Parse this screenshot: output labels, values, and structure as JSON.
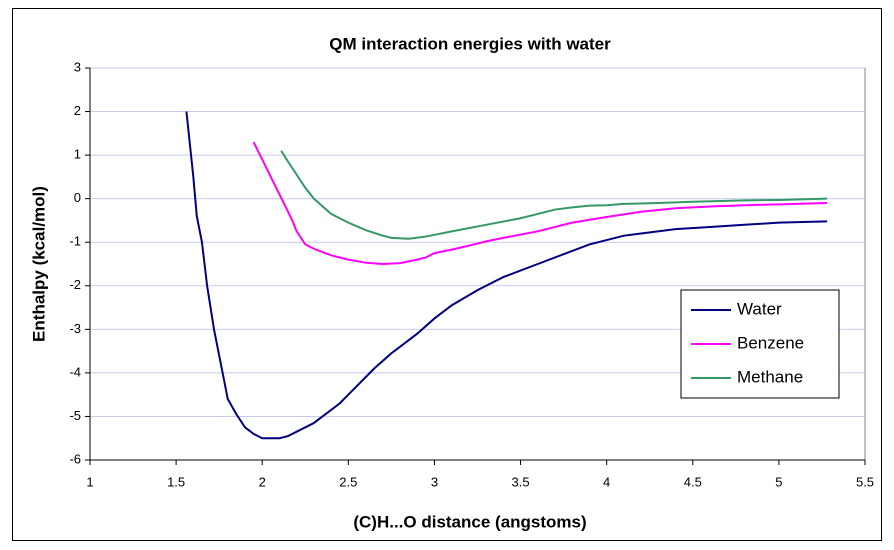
{
  "chart_data": {
    "type": "line",
    "title": "QM interaction energies with water",
    "xlabel": "(C)H...O distance (angstoms)",
    "ylabel": "Enthalpy (kcal/mol)",
    "xlim": [
      1,
      5.5
    ],
    "xticks": [
      1,
      1.5,
      2,
      2.5,
      3,
      3.5,
      4,
      4.5,
      5,
      5.5
    ],
    "ylim": [
      -6,
      3
    ],
    "yticks": [
      -6,
      -5,
      -4,
      -3,
      -2,
      -1,
      0,
      1,
      2,
      3
    ],
    "grid": true,
    "legend": "lower right",
    "series": [
      {
        "name": "Water",
        "color": "#000080",
        "x": [
          1.56,
          1.6,
          1.62,
          1.65,
          1.68,
          1.72,
          1.76,
          1.8,
          1.85,
          1.9,
          1.95,
          2.0,
          2.1,
          2.15,
          2.2,
          2.3,
          2.35,
          2.45,
          2.55,
          2.65,
          2.75,
          2.9,
          3.0,
          3.1,
          3.25,
          3.4,
          3.6,
          3.8,
          3.9,
          4.0,
          4.1,
          4.2,
          4.4,
          4.6,
          4.8,
          5.0,
          5.28
        ],
        "values": [
          2.0,
          0.5,
          -0.4,
          -1.0,
          -2.0,
          -3.0,
          -3.8,
          -4.6,
          -4.95,
          -5.25,
          -5.4,
          -5.5,
          -5.5,
          -5.45,
          -5.35,
          -5.15,
          -5.0,
          -4.7,
          -4.3,
          -3.9,
          -3.55,
          -3.1,
          -2.75,
          -2.45,
          -2.1,
          -1.8,
          -1.5,
          -1.2,
          -1.05,
          -0.95,
          -0.85,
          -0.8,
          -0.7,
          -0.65,
          -0.6,
          -0.55,
          -0.52
        ]
      },
      {
        "name": "Benzene",
        "color": "#ff00ff",
        "x": [
          1.95,
          2.0,
          2.05,
          2.1,
          2.15,
          2.18,
          2.2,
          2.25,
          2.3,
          2.4,
          2.5,
          2.6,
          2.7,
          2.8,
          2.9,
          2.95,
          3.0,
          3.1,
          3.2,
          3.3,
          3.4,
          3.6,
          3.8,
          4.0,
          4.2,
          4.4,
          4.6,
          4.8,
          5.0,
          5.28
        ],
        "values": [
          1.3,
          0.9,
          0.5,
          0.1,
          -0.3,
          -0.55,
          -0.75,
          -1.05,
          -1.15,
          -1.3,
          -1.4,
          -1.47,
          -1.5,
          -1.48,
          -1.4,
          -1.35,
          -1.25,
          -1.17,
          -1.08,
          -0.98,
          -0.9,
          -0.75,
          -0.55,
          -0.42,
          -0.3,
          -0.22,
          -0.18,
          -0.15,
          -0.13,
          -0.1
        ]
      },
      {
        "name": "Methane",
        "color": "#339966",
        "x": [
          2.11,
          2.15,
          2.2,
          2.25,
          2.3,
          2.4,
          2.5,
          2.6,
          2.7,
          2.75,
          2.85,
          2.95,
          3.1,
          3.3,
          3.5,
          3.6,
          3.7,
          3.8,
          3.9,
          4.0,
          4.1,
          4.3,
          4.5,
          4.8,
          5.0,
          5.28
        ],
        "values": [
          1.1,
          0.85,
          0.55,
          0.25,
          0.0,
          -0.35,
          -0.55,
          -0.72,
          -0.85,
          -0.9,
          -0.92,
          -0.87,
          -0.75,
          -0.6,
          -0.45,
          -0.35,
          -0.25,
          -0.2,
          -0.16,
          -0.15,
          -0.12,
          -0.1,
          -0.07,
          -0.04,
          -0.03,
          0.0
        ]
      }
    ]
  }
}
